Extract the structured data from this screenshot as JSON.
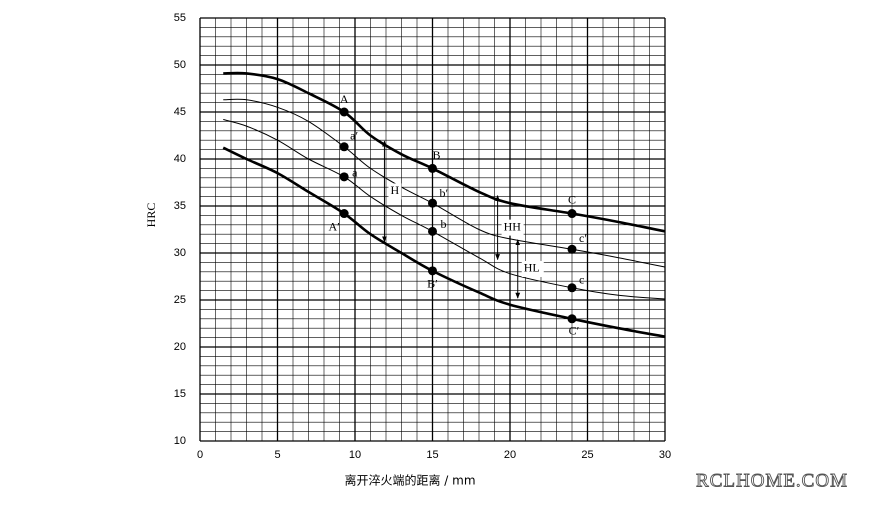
{
  "chart_data": {
    "type": "line",
    "x_label": "离开淬火端的距离 / mm",
    "y_label": "HRC",
    "watermark": "RCLHOME.COM",
    "xlim": [
      0,
      30
    ],
    "xticks": [
      0,
      5,
      10,
      15,
      20,
      25,
      30
    ],
    "ylim": [
      10,
      55
    ],
    "yticks": [
      10,
      15,
      20,
      25,
      30,
      35,
      40,
      45,
      50,
      55
    ],
    "grid": true,
    "minor_grid_step": 1,
    "color": "#000000",
    "x": [
      1.5,
      3,
      5,
      7,
      9.3,
      11,
      13,
      15,
      18,
      20,
      24,
      27,
      30
    ],
    "series": [
      {
        "weight": "thick",
        "values": [
          49.1,
          49.1,
          48.5,
          47,
          45,
          42.5,
          40.5,
          39,
          36.5,
          35.3,
          34.2,
          33.3,
          32.3
        ]
      },
      {
        "weight": "thin",
        "values": [
          46.3,
          46.3,
          45.5,
          44,
          41.3,
          39,
          37,
          35.3,
          32.5,
          31.5,
          30.4,
          29.5,
          28.5
        ]
      },
      {
        "weight": "thin",
        "values": [
          44.2,
          43.5,
          42,
          40,
          38.1,
          36,
          34,
          32.3,
          29.5,
          27.8,
          26.3,
          25.5,
          25.1
        ]
      },
      {
        "weight": "thick",
        "values": [
          41.2,
          40,
          38.5,
          36.5,
          34.2,
          32,
          30,
          28.1,
          25.8,
          24.5,
          23,
          22,
          21.1
        ]
      }
    ],
    "points": [
      {
        "label": "A",
        "x": 9.3,
        "y": 45
      },
      {
        "label": "a′",
        "x": 9.3,
        "y": 41.3
      },
      {
        "label": "a",
        "x": 9.3,
        "y": 38.1
      },
      {
        "label": "A′",
        "x": 9.3,
        "y": 34.2
      },
      {
        "label": "B",
        "x": 15,
        "y": 39
      },
      {
        "label": "b′",
        "x": 15,
        "y": 35.3
      },
      {
        "label": "b",
        "x": 15,
        "y": 32.3
      },
      {
        "label": "B′",
        "x": 15,
        "y": 28.1
      },
      {
        "label": "C",
        "x": 24,
        "y": 34.2
      },
      {
        "label": "c′",
        "x": 24,
        "y": 30.4
      },
      {
        "label": "c",
        "x": 24,
        "y": 26.3
      },
      {
        "label": "C′",
        "x": 24,
        "y": 23
      }
    ],
    "arrows": [
      {
        "label": "H",
        "x": 11.9,
        "from": 41.9,
        "to": 31.2
      },
      {
        "label": "HH",
        "x": 19.2,
        "from": 36.1,
        "to": 29.3
      },
      {
        "label": "HL",
        "x": 20.5,
        "from": 31.4,
        "to": 25.2
      }
    ]
  }
}
